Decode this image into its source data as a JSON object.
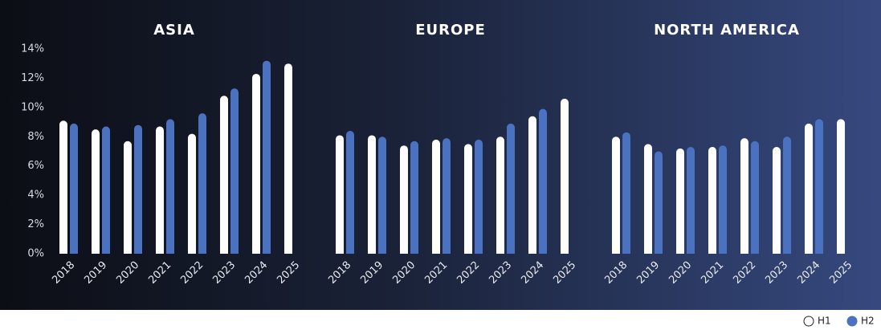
{
  "chart_data": [
    {
      "type": "bar",
      "title": "ASIA",
      "categories": [
        "2018",
        "2019",
        "2020",
        "2021",
        "2022",
        "2023",
        "2024",
        "2025"
      ],
      "series": [
        {
          "name": "H1",
          "color": "#ffffff",
          "values": [
            9.1,
            8.5,
            7.7,
            8.7,
            8.2,
            10.8,
            12.3,
            13.0
          ]
        },
        {
          "name": "H2",
          "color": "#4a72c0",
          "values": [
            8.9,
            8.7,
            8.8,
            9.2,
            9.6,
            11.3,
            13.2,
            null
          ]
        }
      ],
      "ylim": [
        0,
        14
      ],
      "yticks": [
        {
          "value": 0,
          "label": "0%"
        },
        {
          "value": 2,
          "label": "2%"
        },
        {
          "value": 4,
          "label": "4%"
        },
        {
          "value": 6,
          "label": "6%"
        },
        {
          "value": 8,
          "label": "8%"
        },
        {
          "value": 10,
          "label": "10%"
        },
        {
          "value": 12,
          "label": "12%"
        },
        {
          "value": 14,
          "label": "14%"
        }
      ],
      "legend": "bottom-right"
    },
    {
      "type": "bar",
      "title": "EUROPE",
      "categories": [
        "2018",
        "2019",
        "2020",
        "2021",
        "2022",
        "2023",
        "2024",
        "2025"
      ],
      "series": [
        {
          "name": "H1",
          "color": "#ffffff",
          "values": [
            8.1,
            8.1,
            7.4,
            7.8,
            7.5,
            8.0,
            9.4,
            10.6
          ]
        },
        {
          "name": "H2",
          "color": "#4a72c0",
          "values": [
            8.4,
            8.0,
            7.7,
            7.9,
            7.8,
            8.9,
            9.9,
            null
          ]
        }
      ],
      "ylim": [
        0,
        14
      ]
    },
    {
      "type": "bar",
      "title": "NORTH AMERICA",
      "categories": [
        "2018",
        "2019",
        "2020",
        "2021",
        "2022",
        "2023",
        "2024",
        "2025"
      ],
      "series": [
        {
          "name": "H1",
          "color": "#ffffff",
          "values": [
            8.0,
            7.5,
            7.2,
            7.3,
            7.9,
            7.3,
            8.9,
            9.2
          ]
        },
        {
          "name": "H2",
          "color": "#4a72c0",
          "values": [
            8.3,
            7.0,
            7.3,
            7.4,
            7.7,
            8.0,
            9.2,
            null
          ]
        }
      ],
      "ylim": [
        0,
        14
      ]
    }
  ]
}
